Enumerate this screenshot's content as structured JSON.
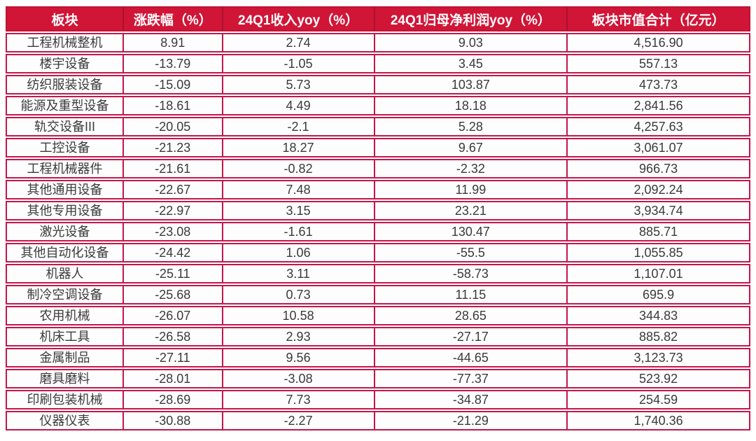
{
  "colors": {
    "header_bg": "#d01537",
    "header_divider": "#aa1130",
    "cell_border": "#c3164a",
    "header_text": "#ffffff",
    "body_text": "#3a3a3a"
  },
  "chart_data": {
    "type": "table",
    "title": "",
    "headers": [
      "板块",
      "涨跌幅（%）",
      "24Q1收入yoy（%）",
      "24Q1归母净利润yoy（%）",
      "板块市值合计（亿元）"
    ],
    "rows": [
      [
        "工程机械整机",
        "8.91",
        "2.74",
        "9.03",
        "4,516.90"
      ],
      [
        "楼宇设备",
        "-13.79",
        "-1.05",
        "3.45",
        "557.13"
      ],
      [
        "纺织服装设备",
        "-15.09",
        "5.73",
        "103.87",
        "473.73"
      ],
      [
        "能源及重型设备",
        "-18.61",
        "4.49",
        "18.18",
        "2,841.56"
      ],
      [
        "轨交设备III",
        "-20.05",
        "-2.1",
        "5.28",
        "4,257.63"
      ],
      [
        "工控设备",
        "-21.23",
        "18.27",
        "9.67",
        "3,061.07"
      ],
      [
        "工程机械器件",
        "-21.61",
        "-0.82",
        "-2.32",
        "966.73"
      ],
      [
        "其他通用设备",
        "-22.67",
        "7.48",
        "11.99",
        "2,092.24"
      ],
      [
        "其他专用设备",
        "-22.97",
        "3.15",
        "23.21",
        "3,934.74"
      ],
      [
        "激光设备",
        "-23.08",
        "-1.61",
        "130.47",
        "885.71"
      ],
      [
        "其他自动化设备",
        "-24.42",
        "1.06",
        "-55.5",
        "1,055.85"
      ],
      [
        "机器人",
        "-25.11",
        "3.11",
        "-58.73",
        "1,107.01"
      ],
      [
        "制冷空调设备",
        "-25.68",
        "0.73",
        "11.15",
        "695.9"
      ],
      [
        "农用机械",
        "-26.07",
        "10.58",
        "28.65",
        "344.83"
      ],
      [
        "机床工具",
        "-26.58",
        "2.93",
        "-27.17",
        "885.82"
      ],
      [
        "金属制品",
        "-27.11",
        "9.56",
        "-44.65",
        "3,123.73"
      ],
      [
        "磨具磨料",
        "-28.01",
        "-3.08",
        "-77.37",
        "523.92"
      ],
      [
        "印刷包装机械",
        "-28.69",
        "7.73",
        "-34.87",
        "254.59"
      ],
      [
        "仪器仪表",
        "-30.88",
        "-2.27",
        "-21.29",
        "1,740.36"
      ]
    ]
  }
}
